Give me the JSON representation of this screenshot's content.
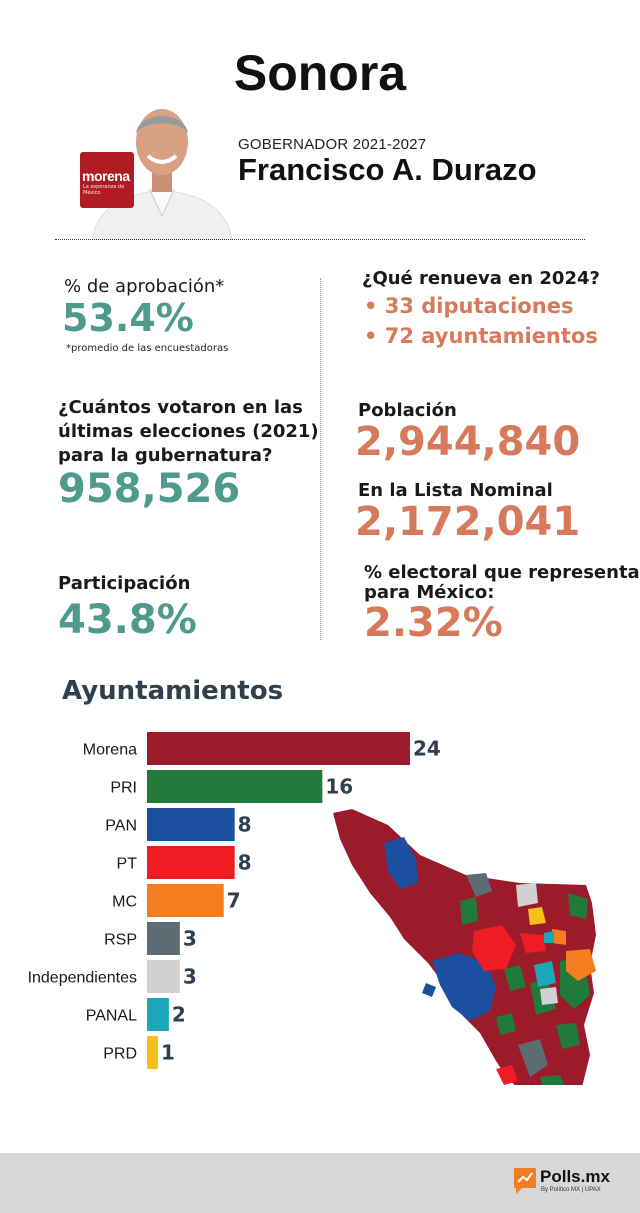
{
  "header": {
    "state": "Sonora",
    "governor_label": "GOBERNADOR 2021-2027",
    "governor_name": "Francisco A. Durazo",
    "party_logo_text": "morena",
    "party_logo_sub": "La esperanza de México"
  },
  "stats": {
    "approval_label": "% de aprobación*",
    "approval_value": "53.4%",
    "approval_note": "*promedio de las encuestadoras",
    "renueva_label": "¿Qué renueva en 2024?",
    "renueva_items": [
      "• 33 diputaciones",
      "• 72 ayuntamientos"
    ],
    "votes_label_lines": [
      "¿Cuántos votaron en las",
      "últimas elecciones (2021)",
      "para la gubernatura?"
    ],
    "votes_value": "958,526",
    "population_label": "Población",
    "population_value": "2,944,840",
    "nominal_label": "En la Lista Nominal",
    "nominal_value": "2,172,041",
    "participation_label": "Participación",
    "participation_value": "43.8%",
    "electoral_label_lines": [
      "% electoral que representa",
      "para México:"
    ],
    "electoral_value": "2.32%"
  },
  "chart_data": {
    "type": "bar",
    "orientation": "horizontal",
    "title": "Ayuntamientos",
    "categories": [
      "Morena",
      "PRI",
      "PAN",
      "PT",
      "MC",
      "RSP",
      "Independientes",
      "PANAL",
      "PRD"
    ],
    "values": [
      24,
      16,
      8,
      8,
      7,
      3,
      3,
      2,
      1
    ],
    "colors": [
      "#9b1b2a",
      "#1f7a3c",
      "#1d4fa0",
      "#ef1c24",
      "#f47d20",
      "#5d6b73",
      "#cfd1d3",
      "#1ba7b8",
      "#f6c01a"
    ],
    "data_labels": true,
    "map_colors": {
      "morena": "#9b1b2a",
      "pri": "#1f7a3c",
      "pan": "#1d4fa0",
      "pt": "#ef1c24",
      "mc": "#f47d20",
      "rsp": "#5d6b73",
      "independientes": "#cfd1d3",
      "panal": "#1ba7b8",
      "prd": "#f6c01a"
    }
  },
  "footer": {
    "brand": "Polls.mx",
    "brand_sub": "By Político MX | UPAX"
  }
}
